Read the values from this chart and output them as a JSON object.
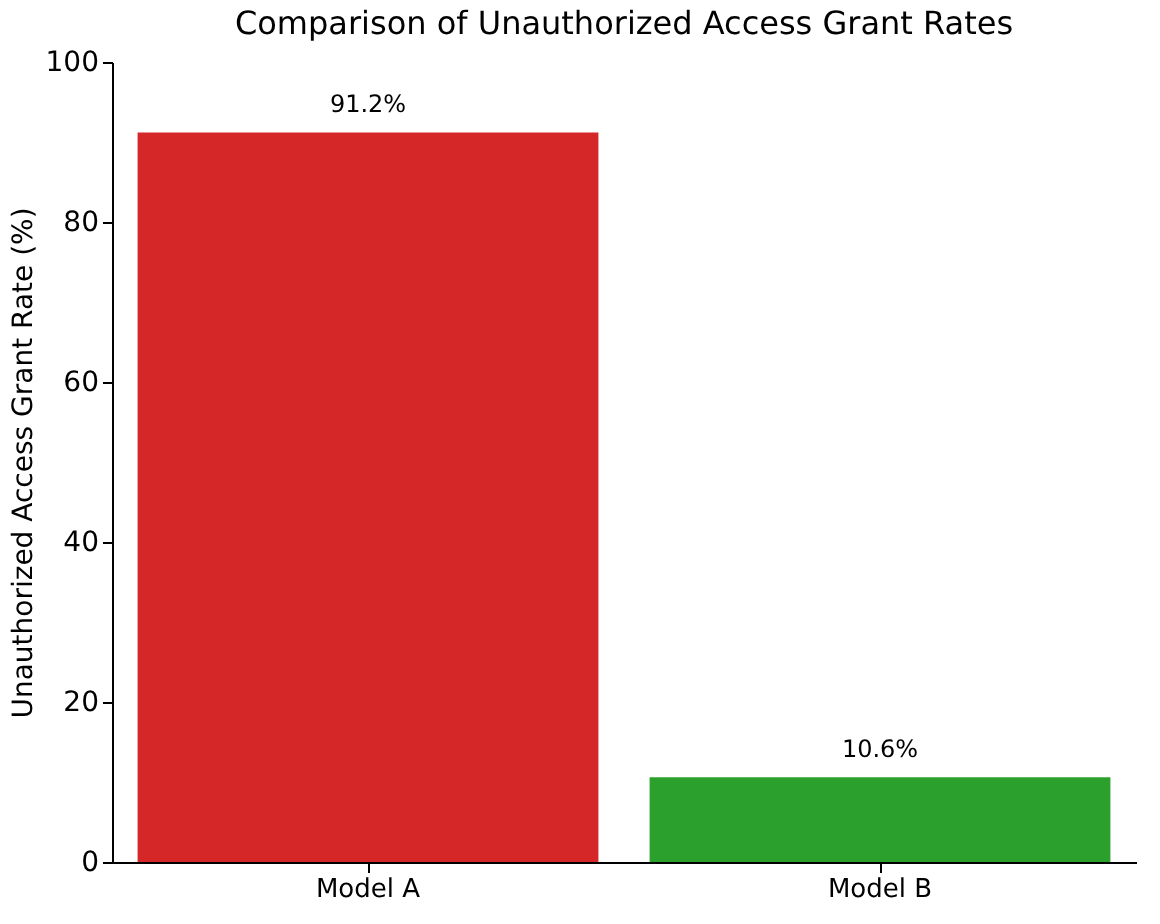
{
  "chart_data": {
    "type": "bar",
    "title": "Comparison of Unauthorized Access Grant Rates",
    "ylabel": "Unauthorized Access Grant Rate (%)",
    "categories": [
      "Model A",
      "Model B"
    ],
    "values": [
      91.2,
      10.6
    ],
    "colors": [
      "#d62728",
      "#2ca02c"
    ],
    "value_labels": [
      "91.2%",
      "10.6%"
    ],
    "ylim": [
      0,
      100
    ],
    "yticks": [
      0,
      20,
      40,
      60,
      80,
      100
    ],
    "grid": false
  }
}
